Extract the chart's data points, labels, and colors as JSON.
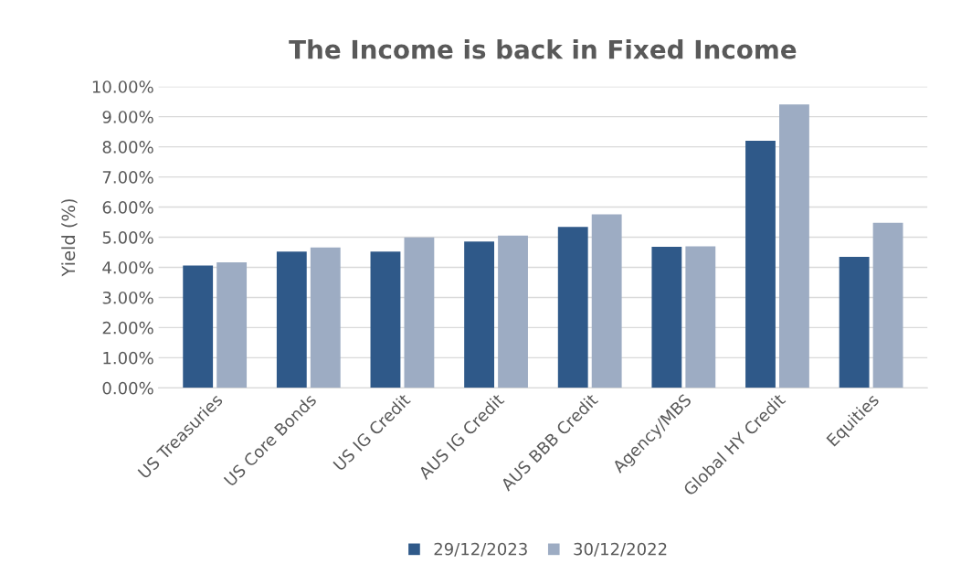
{
  "chart_data": {
    "type": "bar",
    "title": "The Income is back in Fixed Income",
    "ylabel": "Yield (%)",
    "categories": [
      "US Treasuries",
      "US Core Bonds",
      "US IG Credit",
      "AUS IG Credit",
      "AUS BBB Credit",
      "Agency/MBS",
      "Global HY Credit",
      "Equities"
    ],
    "series": [
      {
        "name": "29/12/2023",
        "color": "#2f5989",
        "values": [
          4.06,
          4.52,
          4.52,
          4.86,
          5.34,
          4.68,
          8.2,
          4.35
        ]
      },
      {
        "name": "30/12/2022",
        "color": "#9dacc3",
        "values": [
          4.17,
          4.66,
          4.99,
          5.05,
          5.76,
          4.7,
          9.41,
          5.48
        ]
      }
    ],
    "ylim": [
      0,
      10
    ],
    "yticks": [
      {
        "value": 0,
        "label": "0.00%"
      },
      {
        "value": 1,
        "label": "1.00%"
      },
      {
        "value": 2,
        "label": "2.00%"
      },
      {
        "value": 3,
        "label": "3.00%"
      },
      {
        "value": 4,
        "label": "4.00%"
      },
      {
        "value": 5,
        "label": "5.00%"
      },
      {
        "value": 6,
        "label": "6.00%"
      },
      {
        "value": 7,
        "label": "7.00%"
      },
      {
        "value": 8,
        "label": "8.00%"
      },
      {
        "value": 9,
        "label": "9.00%"
      },
      {
        "value": 10,
        "label": "10.00%"
      }
    ],
    "grid": "y",
    "legend": "bottom"
  }
}
